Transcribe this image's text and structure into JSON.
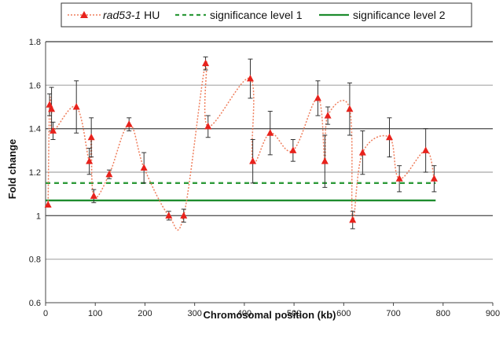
{
  "chart_data": {
    "type": "scatter",
    "xlabel": "Chromosomal position (kb)",
    "ylabel": "Fold change",
    "xlim": [
      0,
      900
    ],
    "ylim": [
      0.6,
      1.8
    ],
    "x_ticks": [
      "0",
      "100",
      "200",
      "300",
      "400",
      "500",
      "600",
      "700",
      "800",
      "900"
    ],
    "y_ticks": [
      "0.6",
      "0.8",
      "1",
      "1.2",
      "1.4",
      "1.6",
      "1.8"
    ],
    "grid": "horizontal",
    "legend_position": "top",
    "legend": [
      {
        "name_italic": "rad53-1",
        "name_suffix": " HU",
        "style": "dotted-triangles",
        "color": "#ef7e5c",
        "marker_color": "#e8221c"
      },
      {
        "name": "significance level 1",
        "style": "dashed",
        "color": "#2e9a3a"
      },
      {
        "name": "significance level 2",
        "style": "solid",
        "color": "#1e8c2e"
      }
    ],
    "series": [
      {
        "name": "rad53-1 HU",
        "x": [
          5,
          8,
          12,
          15,
          62,
          88,
          92,
          97,
          128,
          168,
          198,
          248,
          278,
          322,
          327,
          412,
          417,
          452,
          498,
          548,
          562,
          568,
          612,
          618,
          638,
          692,
          712,
          765,
          782
        ],
        "y": [
          1.05,
          1.51,
          1.49,
          1.39,
          1.5,
          1.25,
          1.36,
          1.09,
          1.19,
          1.42,
          1.22,
          1.0,
          1.0,
          1.7,
          1.41,
          1.63,
          1.25,
          1.38,
          1.3,
          1.54,
          1.25,
          1.46,
          1.49,
          0.98,
          1.29,
          1.36,
          1.17,
          1.3,
          1.17
        ],
        "err": [
          0.0,
          0.05,
          0.1,
          0.04,
          0.12,
          0.06,
          0.09,
          0.03,
          0.02,
          0.03,
          0.07,
          0.02,
          0.03,
          0.03,
          0.05,
          0.09,
          0.1,
          0.1,
          0.05,
          0.08,
          0.12,
          0.04,
          0.12,
          0.04,
          0.1,
          0.09,
          0.06,
          0.1,
          0.06
        ]
      }
    ],
    "reference_lines": [
      {
        "name": "significance level 1",
        "y": 1.15,
        "x_range": [
          0,
          785
        ]
      },
      {
        "name": "significance level 2",
        "y": 1.07,
        "x_range": [
          0,
          785
        ]
      }
    ]
  }
}
